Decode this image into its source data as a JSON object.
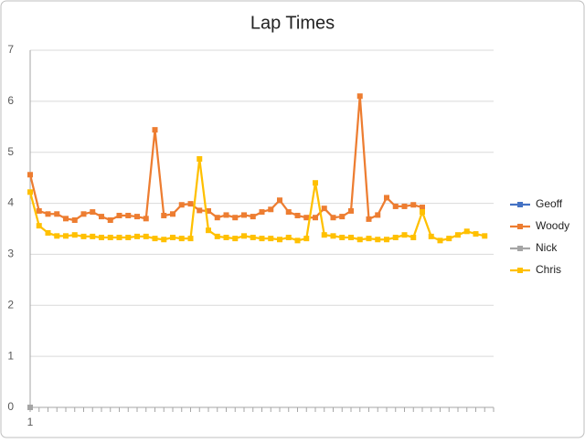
{
  "chart_data": {
    "type": "line",
    "title": "Lap Times",
    "categories": [
      "1",
      null,
      null,
      null,
      null,
      null,
      null,
      null,
      null,
      null,
      null,
      null,
      null,
      null,
      null,
      null,
      null,
      null,
      null,
      null,
      null,
      null,
      null,
      null,
      null,
      null,
      null,
      null,
      null,
      null,
      null,
      null,
      null,
      null,
      null,
      null,
      null,
      null,
      null,
      null,
      null,
      null,
      null,
      null,
      null,
      null,
      null,
      null,
      null,
      null,
      null,
      null,
      null
    ],
    "series": [
      {
        "name": "Geoff",
        "color": "#4472c4",
        "values": [
          0,
          null,
          null,
          null,
          null,
          null,
          null,
          null,
          null,
          null,
          null,
          null,
          null,
          null,
          null,
          null,
          null,
          null,
          null,
          null,
          null,
          null,
          null,
          null,
          null,
          null,
          null,
          null,
          null,
          null,
          null,
          null,
          null,
          null,
          null,
          null,
          null,
          null,
          null,
          null,
          null,
          null,
          null,
          null,
          null,
          null,
          null,
          null,
          null,
          null,
          null,
          null,
          null
        ]
      },
      {
        "name": "Woody",
        "color": "#ed7d31",
        "values": [
          4.56,
          3.85,
          3.79,
          3.79,
          3.7,
          3.67,
          3.79,
          3.83,
          3.74,
          3.67,
          3.76,
          3.76,
          3.74,
          3.7,
          5.44,
          3.76,
          3.79,
          3.97,
          3.99,
          3.86,
          3.85,
          3.72,
          3.77,
          3.72,
          3.77,
          3.74,
          3.83,
          3.88,
          4.06,
          3.83,
          3.76,
          3.72,
          3.72,
          3.9,
          3.72,
          3.74,
          3.85,
          6.1,
          3.69,
          3.77,
          4.11,
          3.94,
          3.94,
          3.97,
          3.92,
          null,
          null,
          null,
          null,
          null,
          null,
          null,
          null
        ]
      },
      {
        "name": "Nick",
        "color": "#a5a5a5",
        "values": [
          0,
          null,
          null,
          null,
          null,
          null,
          null,
          null,
          null,
          null,
          null,
          null,
          null,
          null,
          null,
          null,
          null,
          null,
          null,
          null,
          null,
          null,
          null,
          null,
          null,
          null,
          null,
          null,
          null,
          null,
          null,
          null,
          null,
          null,
          null,
          null,
          null,
          null,
          null,
          null,
          null,
          null,
          null,
          null,
          null,
          null,
          null,
          null,
          null,
          null,
          null,
          null,
          null
        ]
      },
      {
        "name": "Chris",
        "color": "#ffc000",
        "values": [
          4.22,
          3.56,
          3.42,
          3.36,
          3.36,
          3.38,
          3.35,
          3.35,
          3.33,
          3.33,
          3.33,
          3.33,
          3.35,
          3.35,
          3.31,
          3.29,
          3.33,
          3.31,
          3.31,
          4.87,
          3.47,
          3.35,
          3.33,
          3.31,
          3.36,
          3.33,
          3.31,
          3.31,
          3.29,
          3.33,
          3.27,
          3.31,
          4.4,
          3.38,
          3.36,
          3.33,
          3.33,
          3.29,
          3.31,
          3.29,
          3.29,
          3.33,
          3.38,
          3.33,
          3.83,
          3.35,
          3.27,
          3.31,
          3.38,
          3.45,
          3.4,
          3.36,
          null
        ]
      }
    ],
    "ylim": [
      0,
      7
    ],
    "yticks": [
      0,
      1,
      2,
      3,
      4,
      5,
      6,
      7
    ],
    "grid": true,
    "legend": "right"
  }
}
